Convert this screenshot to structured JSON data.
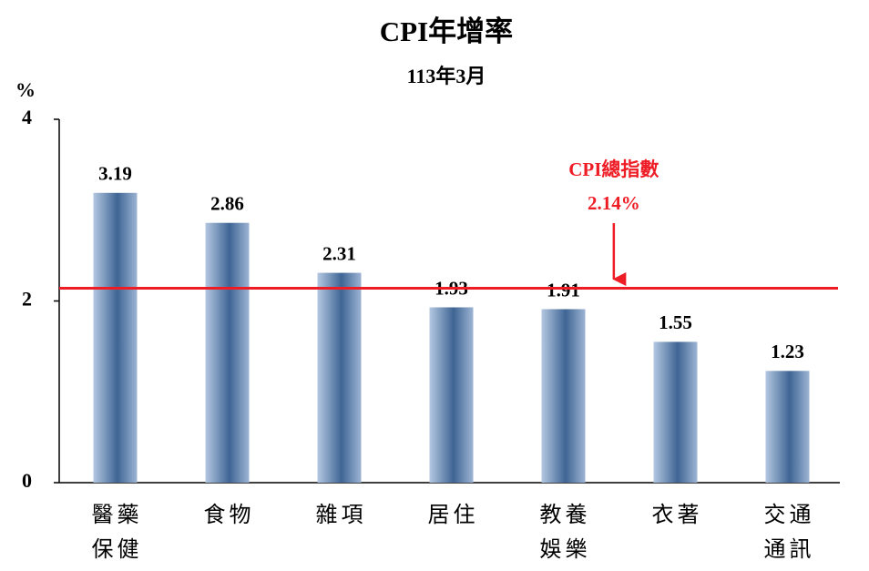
{
  "chart_data": {
    "type": "bar",
    "title": "CPI年增率",
    "subtitle": "113年3月",
    "y_label": "%",
    "categories": [
      "醫藥\n保健",
      "食物",
      "雜項",
      "居住",
      "教養\n娛樂",
      "衣著",
      "交通\n通訊"
    ],
    "values": [
      3.19,
      2.86,
      2.31,
      1.93,
      1.91,
      1.55,
      1.23
    ],
    "color": "#3f6594",
    "ylim": [
      0,
      4
    ],
    "yticks": [
      0,
      2,
      4
    ],
    "grid": false,
    "reference_line": {
      "value": 2.14,
      "label": "CPI總指數",
      "value_label": "2.14%",
      "color": "#ee1c25"
    }
  }
}
